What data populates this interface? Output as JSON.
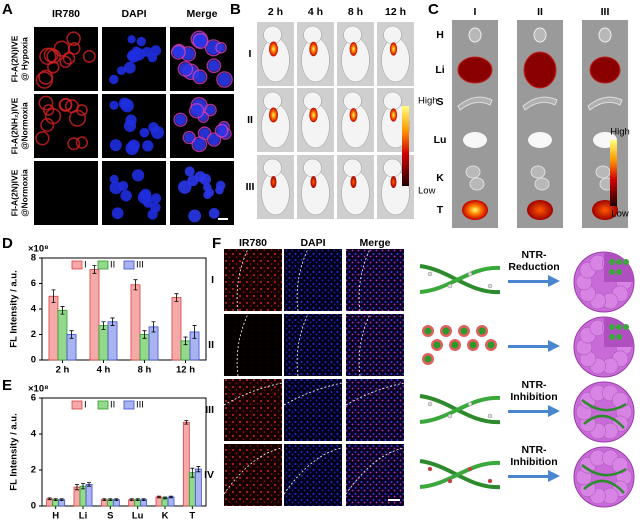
{
  "panels": {
    "letters": [
      "A",
      "B",
      "C",
      "D",
      "E",
      "F"
    ],
    "a": {
      "columns": [
        "IR780",
        "DAPI",
        "Merge"
      ],
      "rows": [
        [
          "FI-A(2N)IVE",
          "@ Hypoxia"
        ],
        [
          "FI-A(2NH₂)IVE",
          "@Normoxia"
        ],
        [
          "FI-A(2N)IVE",
          "@Normoxia"
        ]
      ]
    },
    "b": {
      "times": [
        "2 h",
        "4 h",
        "8 h",
        "12 h"
      ],
      "rows": [
        "I",
        "II",
        "III"
      ],
      "scale": [
        "High",
        "Low"
      ]
    },
    "c": {
      "columns": [
        "I",
        "II",
        "III"
      ],
      "organs": [
        "H",
        "Li",
        "S",
        "Lu",
        "K",
        "T"
      ],
      "scale": [
        "High",
        "Low"
      ]
    },
    "f": {
      "columns": [
        "IR780",
        "DAPI",
        "Merge"
      ],
      "rows": [
        "I",
        "II",
        "III",
        "IV"
      ],
      "steps": [
        [
          "NTR-",
          "Reduction"
        ],
        [
          "NTR-",
          "Inhibition"
        ],
        [
          "NTR-",
          "Inhibition"
        ]
      ]
    }
  },
  "chart_data": [
    {
      "type": "bar",
      "unit_label": "×10⁸",
      "ylabel": "FL Intensity / a.u.",
      "categories": [
        "2 h",
        "4 h",
        "8 h",
        "12 h"
      ],
      "series": [
        {
          "name": "I",
          "color": "#f6a9a9",
          "edge": "#d9403f",
          "values": [
            5.0,
            7.1,
            5.9,
            4.9
          ],
          "errors": [
            0.5,
            0.3,
            0.4,
            0.3
          ]
        },
        {
          "name": "II",
          "color": "#93d98c",
          "edge": "#2e9a2a",
          "values": [
            3.9,
            2.7,
            2.0,
            1.5
          ],
          "errors": [
            0.3,
            0.3,
            0.3,
            0.3
          ]
        },
        {
          "name": "III",
          "color": "#aab3f2",
          "edge": "#3a4fc9",
          "values": [
            2.0,
            3.0,
            2.6,
            2.2
          ],
          "errors": [
            0.3,
            0.3,
            0.4,
            0.5
          ]
        }
      ],
      "ylim": [
        0,
        8
      ],
      "yticks": [
        0,
        2,
        4,
        6,
        8
      ]
    },
    {
      "type": "bar",
      "unit_label": "×10⁸",
      "ylabel": "FL Intensity / a.u.",
      "categories": [
        "H",
        "Li",
        "S",
        "Lu",
        "K",
        "T"
      ],
      "series": [
        {
          "name": "I",
          "color": "#f6a9a9",
          "edge": "#d9403f",
          "values": [
            0.4,
            1.05,
            0.35,
            0.35,
            0.5,
            4.65
          ],
          "errors": [
            0.05,
            0.15,
            0.05,
            0.05,
            0.05,
            0.1
          ]
        },
        {
          "name": "II",
          "color": "#93d98c",
          "edge": "#2e9a2a",
          "values": [
            0.35,
            1.1,
            0.35,
            0.35,
            0.45,
            1.85
          ],
          "errors": [
            0.05,
            0.15,
            0.05,
            0.05,
            0.05,
            0.25
          ]
        },
        {
          "name": "III",
          "color": "#aab3f2",
          "edge": "#3a4fc9",
          "values": [
            0.35,
            1.2,
            0.35,
            0.35,
            0.5,
            2.05
          ],
          "errors": [
            0.05,
            0.1,
            0.05,
            0.05,
            0.05,
            0.15
          ]
        }
      ],
      "ylim": [
        0,
        6
      ],
      "yticks": [
        0,
        2,
        4,
        6
      ]
    }
  ]
}
